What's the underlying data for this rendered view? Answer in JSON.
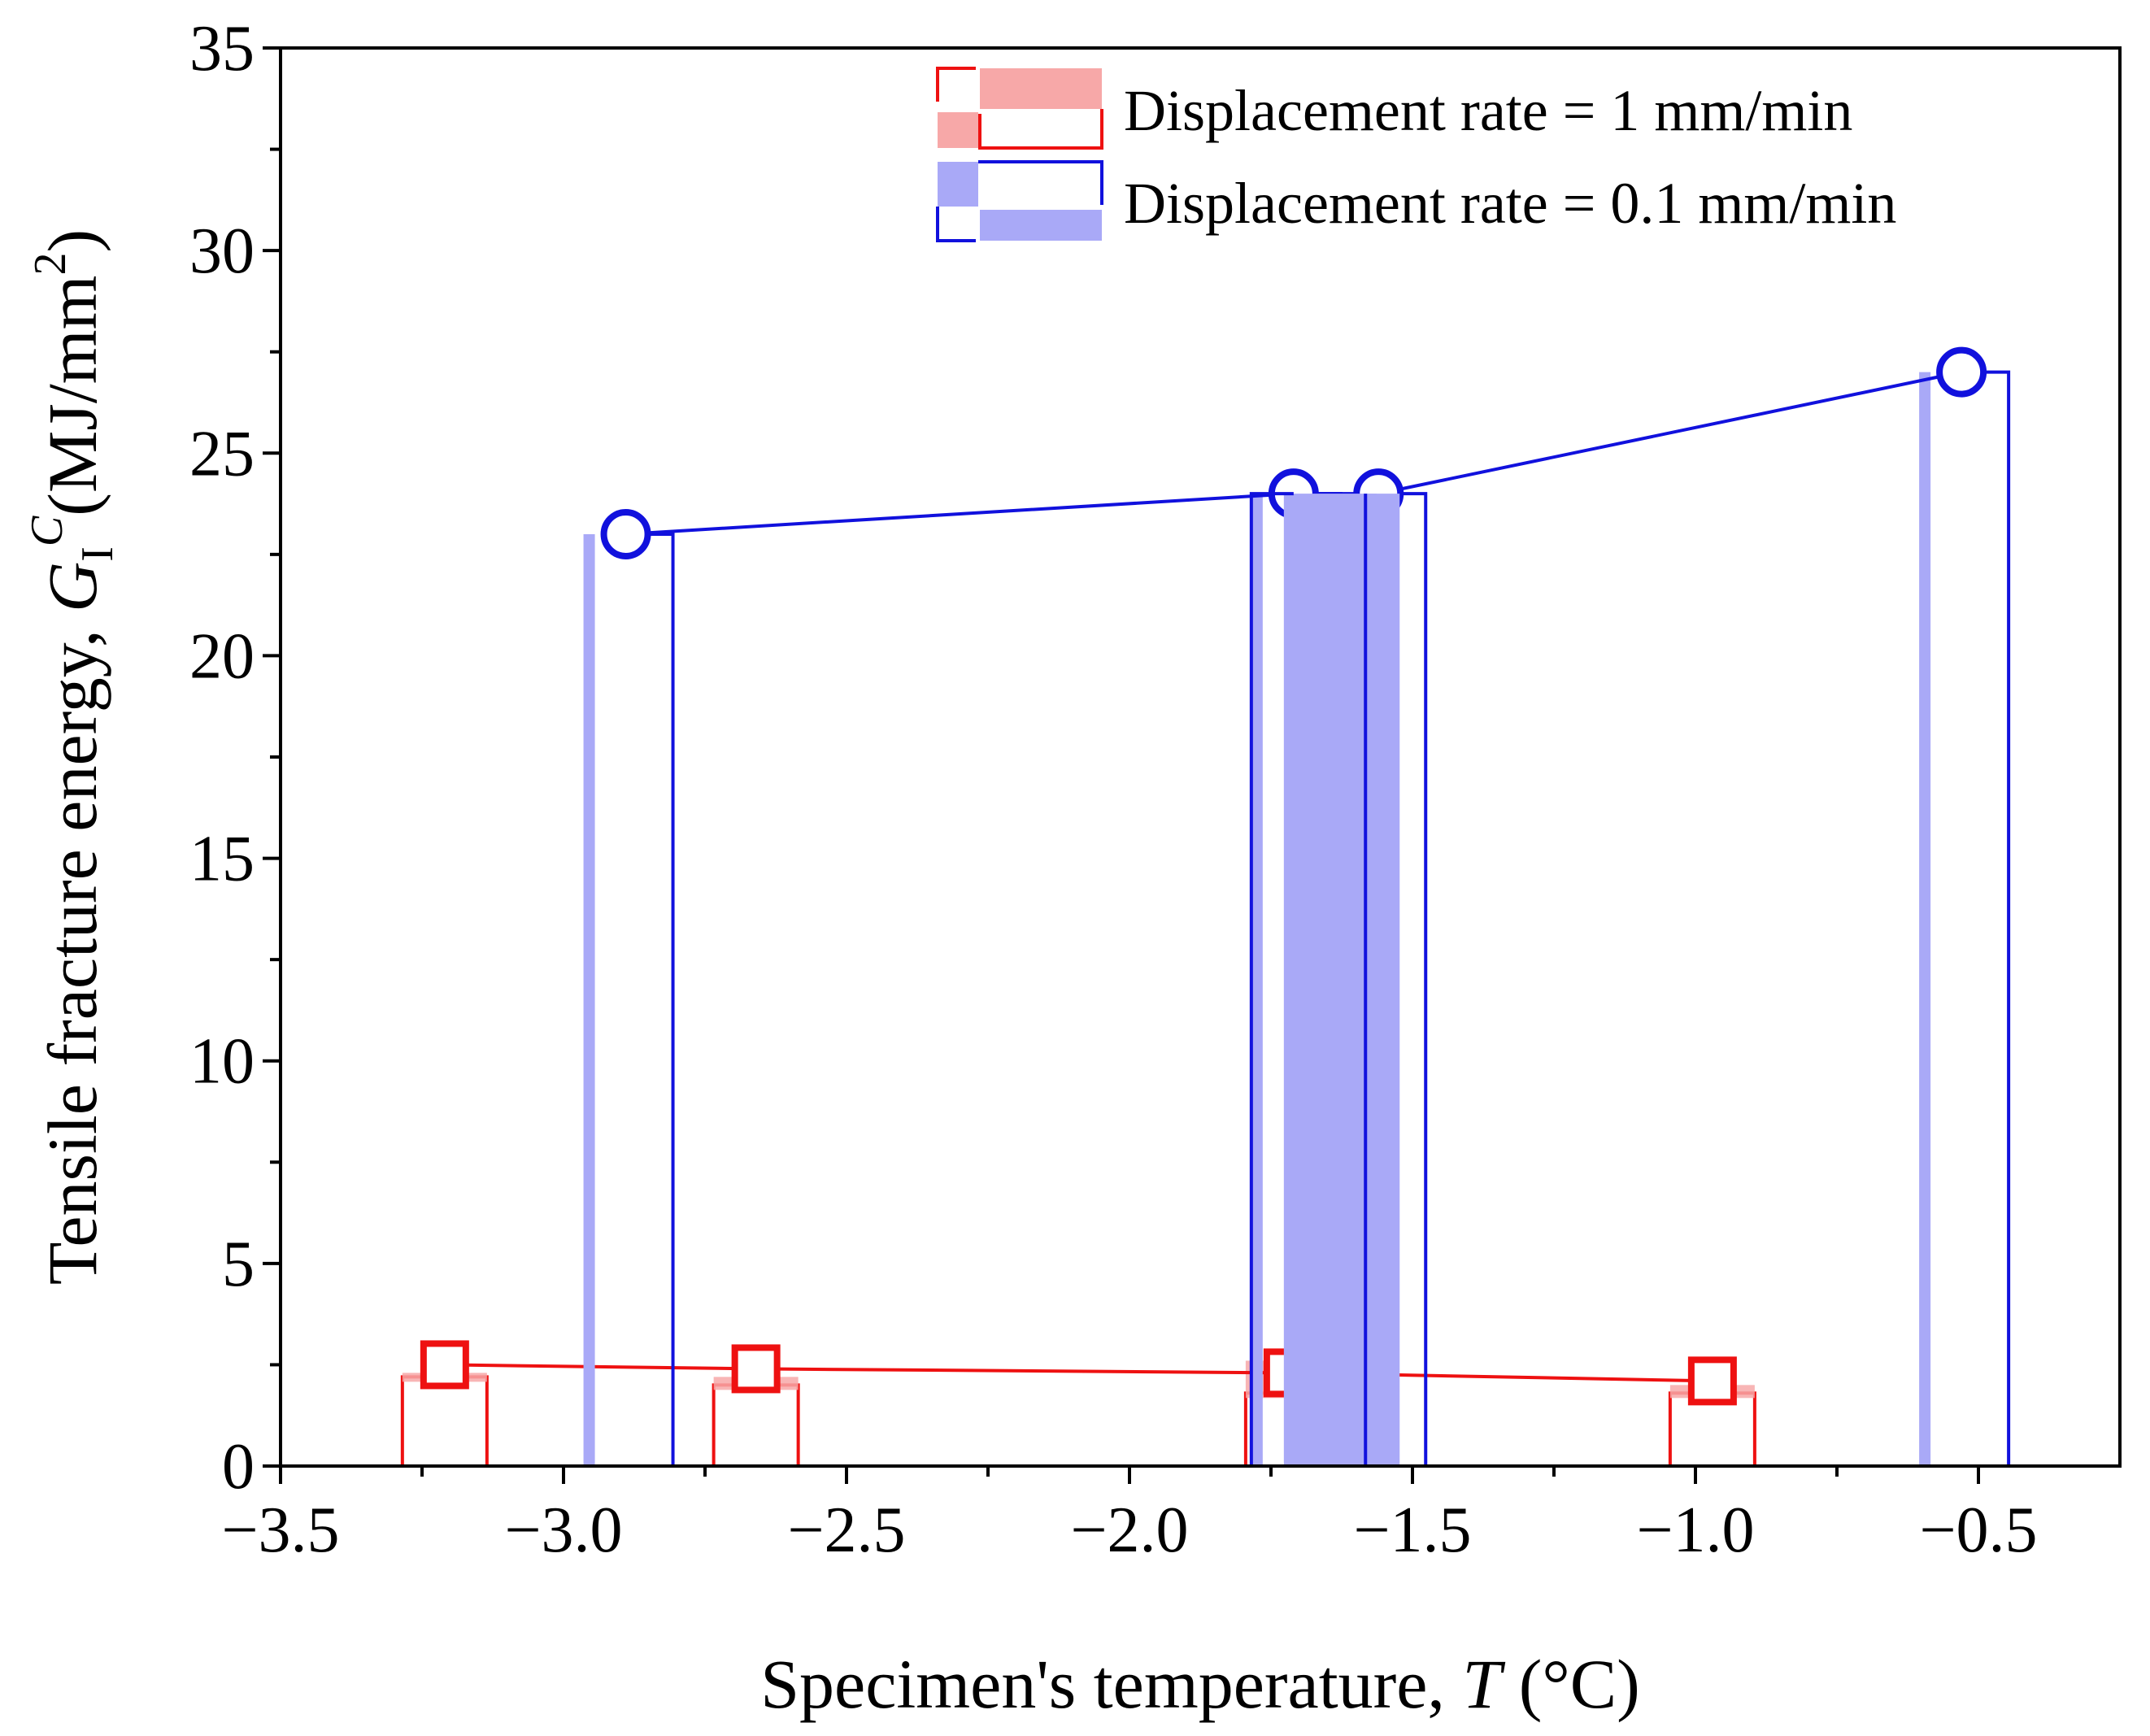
{
  "chart_data": {
    "type": "scatter",
    "title": "",
    "xlabel_prefix": "Specimen's temperature, ",
    "xlabel_var": "T",
    "xlabel_suffix": " (°C)",
    "ylabel_prefix": "Tensile fracture energy, ",
    "ylabel_var": "G",
    "ylabel_sub": "I",
    "ylabel_sup": "C",
    "ylabel_unit": "(MJ/mm",
    "ylabel_unit_sup": "2",
    "ylabel_close": ")",
    "xlim": [
      -3.5,
      -0.25
    ],
    "ylim": [
      0,
      35
    ],
    "xticks": [
      -3.5,
      -3.0,
      -2.5,
      -2.0,
      -1.5,
      -1.0,
      -0.5
    ],
    "xtick_labels": [
      "−3.5",
      "−3.0",
      "−2.5",
      "−2.0",
      "−1.5",
      "−1.0",
      "−0.5"
    ],
    "yticks": [
      0,
      5,
      10,
      15,
      20,
      25,
      30,
      35
    ],
    "ytick_labels": [
      "0",
      "5",
      "10",
      "15",
      "20",
      "25",
      "30",
      "35"
    ],
    "legend_position": "top-right",
    "series": [
      {
        "name": "Displacement rate = 1 mm/min",
        "marker": "square",
        "color": "#ee1111",
        "fill_color": "#f7a8a8",
        "points": [
          {
            "x": -3.21,
            "y": 2.5,
            "bar_low": 2.2,
            "bar_high": 2.3
          },
          {
            "x": -2.66,
            "y": 2.4,
            "bar_low": 2.0,
            "bar_high": 2.2
          },
          {
            "x": -1.72,
            "y": 2.3,
            "bar_low": 1.8,
            "bar_high": 2.6
          },
          {
            "x": -0.97,
            "y": 2.1,
            "bar_low": 1.8,
            "bar_high": 2.0
          }
        ]
      },
      {
        "name": "Displacement rate = 0.1 mm/min",
        "marker": "circle",
        "color": "#1111dd",
        "fill_color": "#a9a9f7",
        "points": [
          {
            "x": -2.89,
            "y": 23.0,
            "bar_low": 23.0,
            "bar_high": 23.0
          },
          {
            "x": -1.71,
            "y": 24.0,
            "bar_low": 24.0,
            "bar_high": 24.0
          },
          {
            "x": -1.56,
            "y": 24.0,
            "bar_low": 24.0,
            "bar_high": 24.0
          },
          {
            "x": -0.53,
            "y": 27.0,
            "bar_low": 27.0,
            "bar_high": 27.0
          }
        ]
      }
    ]
  }
}
